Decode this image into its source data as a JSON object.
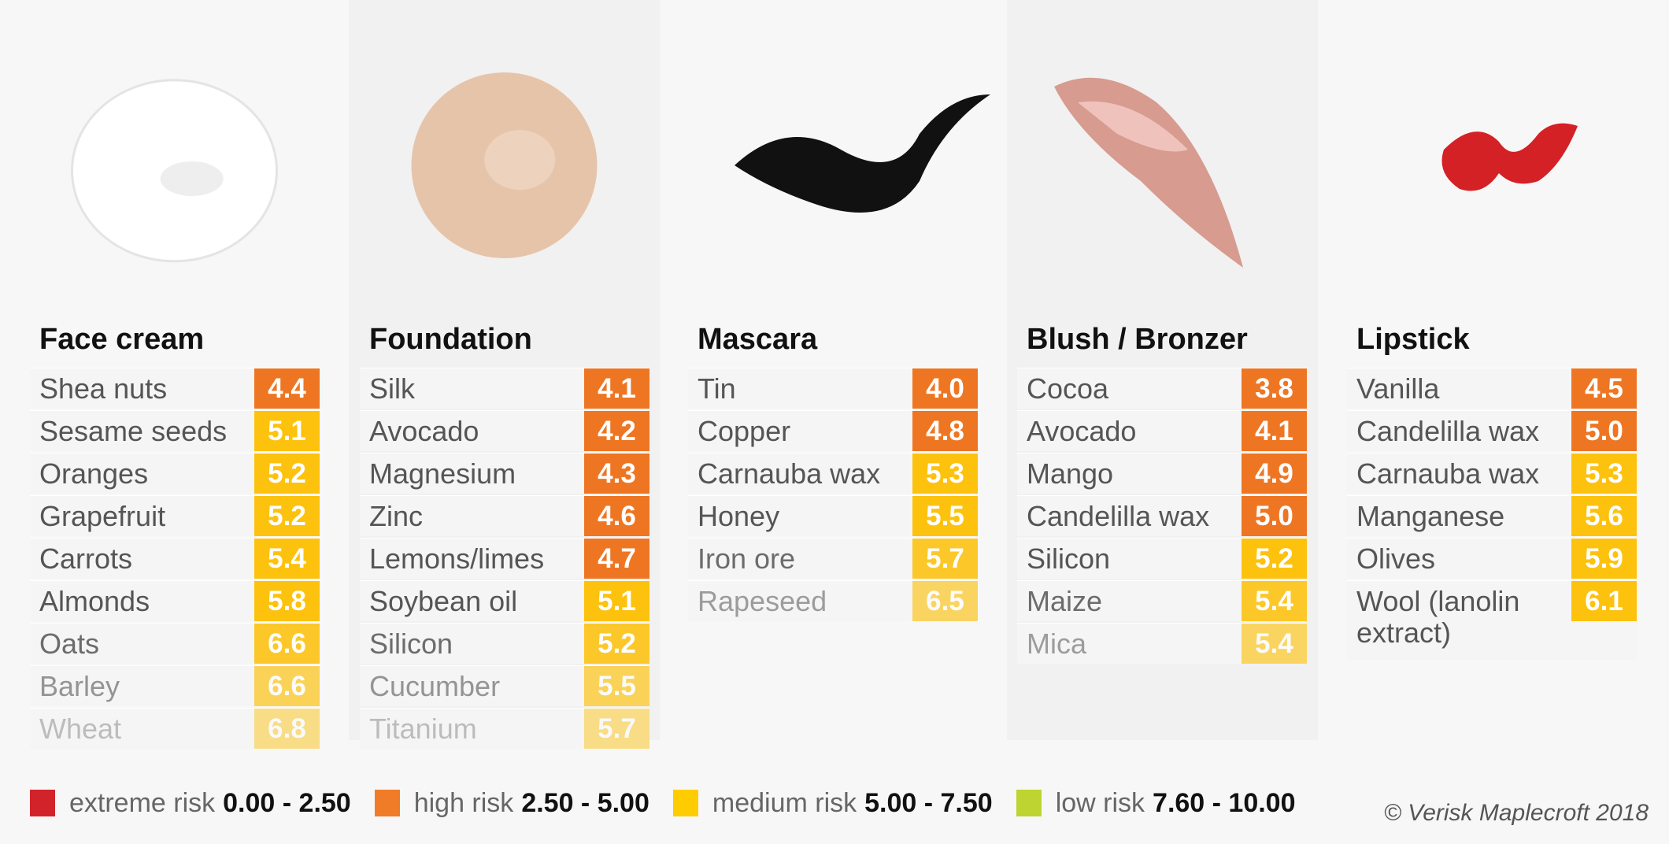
{
  "chart_data": {
    "type": "table",
    "products": [
      {
        "name": "Face cream",
        "image": "cream-swatch",
        "items": [
          {
            "name": "Shea nuts",
            "value": "4.4",
            "risk": "high"
          },
          {
            "name": "Sesame seeds",
            "value": "5.1",
            "risk": "medium"
          },
          {
            "name": "Oranges",
            "value": "5.2",
            "risk": "medium"
          },
          {
            "name": "Grapefruit",
            "value": "5.2",
            "risk": "medium"
          },
          {
            "name": "Carrots",
            "value": "5.4",
            "risk": "medium"
          },
          {
            "name": "Almonds",
            "value": "5.8",
            "risk": "medium"
          },
          {
            "name": "Oats",
            "value": "6.6",
            "risk": "medium"
          },
          {
            "name": "Barley",
            "value": "6.6",
            "risk": "medium"
          },
          {
            "name": "Wheat",
            "value": "6.8",
            "risk": "medium"
          }
        ]
      },
      {
        "name": "Foundation",
        "image": "foundation-swatch",
        "items": [
          {
            "name": "Silk",
            "value": "4.1",
            "risk": "high"
          },
          {
            "name": "Avocado",
            "value": "4.2",
            "risk": "high"
          },
          {
            "name": "Magnesium",
            "value": "4.3",
            "risk": "high"
          },
          {
            "name": "Zinc",
            "value": "4.6",
            "risk": "high"
          },
          {
            "name": "Lemons/limes",
            "value": "4.7",
            "risk": "high"
          },
          {
            "name": "Soybean oil",
            "value": "5.1",
            "risk": "medium"
          },
          {
            "name": "Silicon",
            "value": "5.2",
            "risk": "medium"
          },
          {
            "name": "Cucumber",
            "value": "5.5",
            "risk": "medium"
          },
          {
            "name": "Titanium",
            "value": "5.7",
            "risk": "medium"
          }
        ]
      },
      {
        "name": "Mascara",
        "image": "mascara-swatch",
        "items": [
          {
            "name": "Tin",
            "value": "4.0",
            "risk": "high"
          },
          {
            "name": "Copper",
            "value": "4.8",
            "risk": "high"
          },
          {
            "name": "Carnauba wax",
            "value": "5.3",
            "risk": "medium"
          },
          {
            "name": "Honey",
            "value": "5.5",
            "risk": "medium"
          },
          {
            "name": "Iron ore",
            "value": "5.7",
            "risk": "medium"
          },
          {
            "name": "Rapeseed",
            "value": "6.5",
            "risk": "medium"
          }
        ]
      },
      {
        "name": "Blush / Bronzer",
        "image": "blush-swatch",
        "items": [
          {
            "name": "Cocoa",
            "value": "3.8",
            "risk": "high"
          },
          {
            "name": "Avocado",
            "value": "4.1",
            "risk": "high"
          },
          {
            "name": "Mango",
            "value": "4.9",
            "risk": "high"
          },
          {
            "name": "Candelilla wax",
            "value": "5.0",
            "risk": "high"
          },
          {
            "name": "Silicon",
            "value": "5.2",
            "risk": "medium"
          },
          {
            "name": "Maize",
            "value": "5.4",
            "risk": "medium"
          },
          {
            "name": "Mica",
            "value": "5.4",
            "risk": "medium"
          }
        ]
      },
      {
        "name": "Lipstick",
        "image": "lipstick-swatch",
        "items": [
          {
            "name": "Vanilla",
            "value": "4.5",
            "risk": "high"
          },
          {
            "name": "Candelilla wax",
            "value": "5.0",
            "risk": "high"
          },
          {
            "name": "Carnauba wax",
            "value": "5.3",
            "risk": "medium"
          },
          {
            "name": "Manganese",
            "value": "5.6",
            "risk": "medium"
          },
          {
            "name": "Olives",
            "value": "5.9",
            "risk": "medium"
          },
          {
            "name": "Wool (lanolin extract)",
            "value": "6.1",
            "risk": "medium"
          }
        ]
      }
    ],
    "legend": [
      {
        "label": "extreme risk",
        "range": "0.00 - 2.50",
        "color": "#d2232a"
      },
      {
        "label": "high risk",
        "range": "2.50 - 5.00",
        "color": "#f07c27"
      },
      {
        "label": "medium risk",
        "range": "5.00 - 7.50",
        "color": "#ffcc00"
      },
      {
        "label": "low risk",
        "range": "7.60 - 10.00",
        "color": "#bed430"
      }
    ],
    "risk_colors": {
      "high": "#ee7623",
      "medium": "#fdc20e"
    }
  },
  "copyright": "© Verisk Maplecroft 2018"
}
